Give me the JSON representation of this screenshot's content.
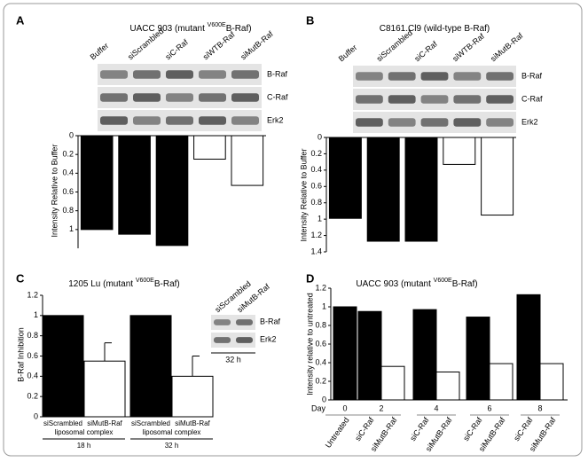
{
  "chart_data": [
    {
      "panel": "A",
      "type": "bar",
      "title_parts": [
        "UACC 903 (mutant ",
        "V600E",
        "B-Raf)"
      ],
      "categories": [
        "Buffer",
        "siScrambled",
        "siC-Raf",
        "siWTB-Raf",
        "siMutB-Raf"
      ],
      "values": [
        1.0,
        1.05,
        1.17,
        0.25,
        0.53
      ],
      "colors": [
        "#000000",
        "#000000",
        "#000000",
        "#ffffff",
        "#ffffff"
      ],
      "ylabel": "Intensity Relative to Buffer",
      "ylim": [
        0,
        1.2
      ],
      "yticks": [
        0,
        0.2,
        0.4,
        0.6,
        0.8,
        1
      ],
      "y_inverted": true,
      "blot_rows": [
        "B-Raf",
        "C-Raf",
        "Erk2"
      ]
    },
    {
      "panel": "B",
      "type": "bar",
      "title_parts": [
        "C8161.Cl9 (wild-type B-Raf)"
      ],
      "categories": [
        "Buffer",
        "siScrambled",
        "siC-Raf",
        "siWTB-Raf",
        "siMutB-Raf"
      ],
      "values": [
        0.99,
        1.27,
        1.27,
        0.33,
        0.95
      ],
      "colors": [
        "#000000",
        "#000000",
        "#000000",
        "#ffffff",
        "#ffffff"
      ],
      "ylabel": "Intensity Relative to Buffer",
      "ylim": [
        0,
        1.4
      ],
      "yticks": [
        0,
        0.2,
        0.4,
        0.6,
        0.8,
        1,
        1.2,
        1.4
      ],
      "y_inverted": true,
      "blot_rows": [
        "B-Raf",
        "C-Raf",
        "Erk2"
      ]
    },
    {
      "panel": "C",
      "type": "bar",
      "title_parts": [
        "1205 Lu (mutant ",
        "V600E",
        "B-Raf)"
      ],
      "categories": [
        "siScrambled",
        "siMutB-Raf",
        "siScrambled",
        "siMutB-Raf"
      ],
      "values": [
        1,
        0.55,
        1,
        0.4
      ],
      "errors": [
        null,
        0.18,
        null,
        0.2
      ],
      "colors": [
        "#000000",
        "#ffffff",
        "#000000",
        "#ffffff"
      ],
      "groups": [
        {
          "label": "liposomal complex",
          "time": "18 h"
        },
        {
          "label": "liposomal complex",
          "time": "32 h"
        }
      ],
      "ylabel": "B-Raf Inhibition",
      "ylim": [
        0,
        1.2
      ],
      "yticks": [
        0,
        0.2,
        0.4,
        0.6,
        0.8,
        1,
        1.2
      ],
      "inset": {
        "lanes": [
          "siScrambled",
          "siMutB-Raf"
        ],
        "rows": [
          "B-Raf",
          "Erk2"
        ],
        "time": "32 h"
      }
    },
    {
      "panel": "D",
      "type": "bar",
      "title_parts": [
        "UACC 903 (mutant ",
        "V600E",
        "B-Raf)"
      ],
      "categories": [
        "Untreated",
        "siC-Raf",
        "siMutB-Raf",
        "siC-Raf",
        "siMutB-Raf",
        "siC-Raf",
        "siMutB-Raf",
        "siC-Raf",
        "siMutB-Raf"
      ],
      "values": [
        1.0,
        0.95,
        0.36,
        0.97,
        0.3,
        0.89,
        0.39,
        1.13,
        0.39
      ],
      "colors": [
        "#000000",
        "#000000",
        "#ffffff",
        "#000000",
        "#ffffff",
        "#000000",
        "#ffffff",
        "#000000",
        "#ffffff"
      ],
      "day_label": "Day",
      "days": [
        "0",
        "2",
        "4",
        "6",
        "8"
      ],
      "ylabel": "Intensity relative to untreated",
      "ylim": [
        0,
        1.2
      ],
      "yticks": [
        0,
        0.2,
        0.4,
        0.6,
        0.8,
        1,
        1.2
      ]
    }
  ]
}
